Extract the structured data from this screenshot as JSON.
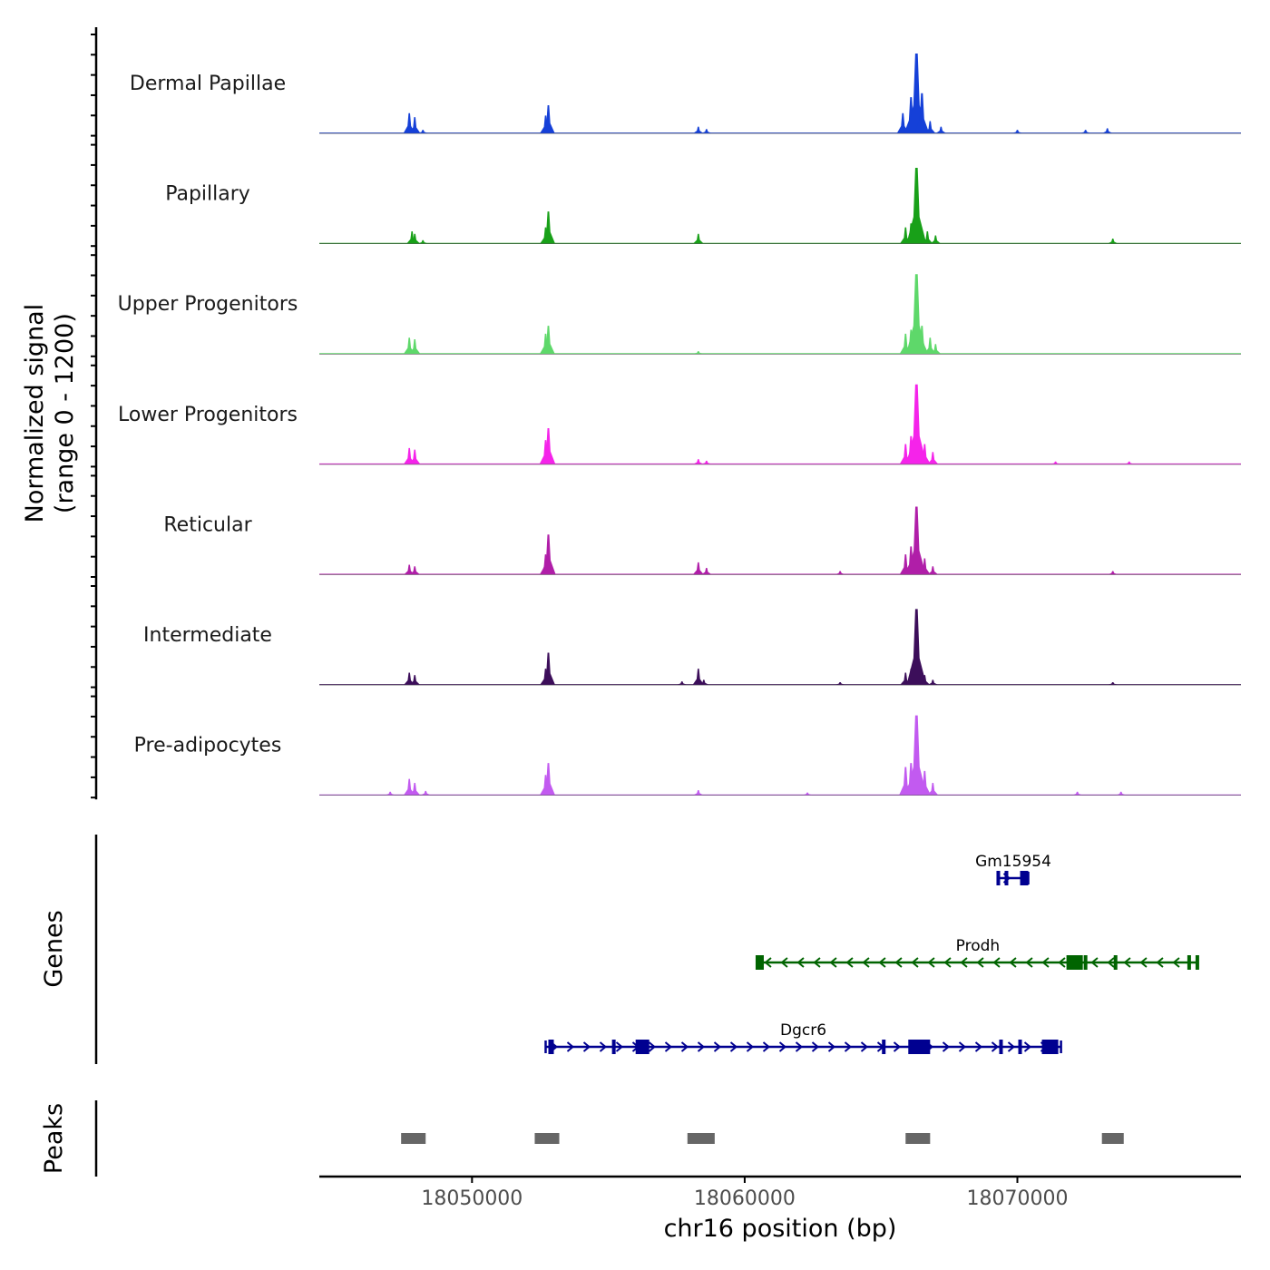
{
  "chart_data": {
    "type": "area",
    "region": {
      "chrom": "chr16",
      "start": 18044400,
      "end": 18078200
    },
    "y_axis": {
      "title_line1": "Normalized signal",
      "title_line2": "(range 0 - 1200)",
      "range": [
        0,
        1200
      ]
    },
    "x_axis": {
      "title": "chr16 position (bp)",
      "ticks": [
        18050000,
        18060000,
        18070000
      ],
      "tick_labels": [
        "18050000",
        "18060000",
        "18070000"
      ]
    },
    "tracks": [
      {
        "name": "Dermal Papillae",
        "color": "#1540d8",
        "peaks": [
          [
            18047700,
            0.25
          ],
          [
            18047900,
            0.2
          ],
          [
            18048200,
            0.04
          ],
          [
            18052700,
            0.22
          ],
          [
            18052800,
            0.35
          ],
          [
            18058300,
            0.08
          ],
          [
            18058600,
            0.05
          ],
          [
            18065800,
            0.25
          ],
          [
            18066100,
            0.45
          ],
          [
            18066300,
            1.0
          ],
          [
            18066500,
            0.5
          ],
          [
            18066800,
            0.15
          ],
          [
            18067200,
            0.08
          ],
          [
            18070000,
            0.04
          ],
          [
            18072500,
            0.04
          ],
          [
            18073300,
            0.06
          ]
        ]
      },
      {
        "name": "Papillary",
        "color": "#18a018",
        "peaks": [
          [
            18047800,
            0.15
          ],
          [
            18047900,
            0.12
          ],
          [
            18048200,
            0.04
          ],
          [
            18052700,
            0.2
          ],
          [
            18052800,
            0.4
          ],
          [
            18058300,
            0.12
          ],
          [
            18065900,
            0.2
          ],
          [
            18066100,
            0.25
          ],
          [
            18066300,
            0.95
          ],
          [
            18066700,
            0.15
          ],
          [
            18067000,
            0.1
          ],
          [
            18073500,
            0.06
          ]
        ]
      },
      {
        "name": "Upper Progenitors",
        "color": "#5ed86a",
        "peaks": [
          [
            18047700,
            0.2
          ],
          [
            18047900,
            0.18
          ],
          [
            18052700,
            0.25
          ],
          [
            18052800,
            0.35
          ],
          [
            18058300,
            0.03
          ],
          [
            18065900,
            0.25
          ],
          [
            18066100,
            0.3
          ],
          [
            18066300,
            1.0
          ],
          [
            18066500,
            0.35
          ],
          [
            18066800,
            0.2
          ],
          [
            18067000,
            0.12
          ]
        ]
      },
      {
        "name": "Lower Progenitors",
        "color": "#f523ea",
        "peaks": [
          [
            18047700,
            0.2
          ],
          [
            18047900,
            0.18
          ],
          [
            18052700,
            0.3
          ],
          [
            18052800,
            0.45
          ],
          [
            18058300,
            0.06
          ],
          [
            18058600,
            0.04
          ],
          [
            18065900,
            0.25
          ],
          [
            18066100,
            0.35
          ],
          [
            18066300,
            1.0
          ],
          [
            18066600,
            0.25
          ],
          [
            18066900,
            0.15
          ],
          [
            18071400,
            0.03
          ],
          [
            18074100,
            0.03
          ]
        ]
      },
      {
        "name": "Reticular",
        "color": "#b01ea8",
        "peaks": [
          [
            18047700,
            0.12
          ],
          [
            18047900,
            0.1
          ],
          [
            18052700,
            0.25
          ],
          [
            18052800,
            0.5
          ],
          [
            18058300,
            0.15
          ],
          [
            18058600,
            0.08
          ],
          [
            18063500,
            0.04
          ],
          [
            18065900,
            0.25
          ],
          [
            18066100,
            0.35
          ],
          [
            18066300,
            0.85
          ],
          [
            18066600,
            0.2
          ],
          [
            18066900,
            0.1
          ],
          [
            18073500,
            0.04
          ]
        ]
      },
      {
        "name": "Intermediate",
        "color": "#3c0e5a",
        "peaks": [
          [
            18047700,
            0.15
          ],
          [
            18047900,
            0.12
          ],
          [
            18052700,
            0.2
          ],
          [
            18052800,
            0.4
          ],
          [
            18057700,
            0.04
          ],
          [
            18058300,
            0.2
          ],
          [
            18058500,
            0.06
          ],
          [
            18063500,
            0.03
          ],
          [
            18065900,
            0.15
          ],
          [
            18066100,
            0.2
          ],
          [
            18066300,
            0.95
          ],
          [
            18066600,
            0.12
          ],
          [
            18066900,
            0.06
          ],
          [
            18073500,
            0.03
          ]
        ]
      },
      {
        "name": "Pre-adipocytes",
        "color": "#c25af0",
        "peaks": [
          [
            18047000,
            0.04
          ],
          [
            18047700,
            0.2
          ],
          [
            18047900,
            0.15
          ],
          [
            18048300,
            0.05
          ],
          [
            18052700,
            0.25
          ],
          [
            18052800,
            0.4
          ],
          [
            18058300,
            0.06
          ],
          [
            18062300,
            0.03
          ],
          [
            18065900,
            0.35
          ],
          [
            18066100,
            0.4
          ],
          [
            18066300,
            1.0
          ],
          [
            18066600,
            0.3
          ],
          [
            18066900,
            0.15
          ],
          [
            18072200,
            0.04
          ],
          [
            18073800,
            0.04
          ]
        ]
      }
    ],
    "genes_title": "Genes",
    "genes": [
      {
        "name": "Gm15954",
        "strand": "+",
        "start": 18069300,
        "end": 18070400,
        "color": "#000090",
        "exons": [
          [
            18070100,
            18070400
          ]
        ],
        "markers": [
          18069300,
          18069600
        ]
      },
      {
        "name": "Prodh",
        "strand": "-",
        "start": 18060500,
        "end": 18076600,
        "color": "#006400",
        "exons": [
          [
            18060400,
            18060700
          ],
          [
            18071800,
            18072400
          ]
        ],
        "markers": [
          18072500,
          18073600,
          18076300,
          18076600
        ]
      },
      {
        "name": "Dgcr6",
        "strand": "+",
        "start": 18052700,
        "end": 18071600,
        "color": "#000090",
        "exons": [
          [
            18052800,
            18053000
          ],
          [
            18056000,
            18056500
          ],
          [
            18066000,
            18066800
          ],
          [
            18070900,
            18071500
          ]
        ],
        "markers": [
          18055200,
          18065100,
          18069400,
          18070100
        ]
      }
    ],
    "peaks_title": "Peaks",
    "peak_regions": [
      [
        18047400,
        18048300
      ],
      [
        18052300,
        18053200
      ],
      [
        18057900,
        18058900
      ],
      [
        18065900,
        18066800
      ],
      [
        18073100,
        18073900
      ]
    ]
  }
}
